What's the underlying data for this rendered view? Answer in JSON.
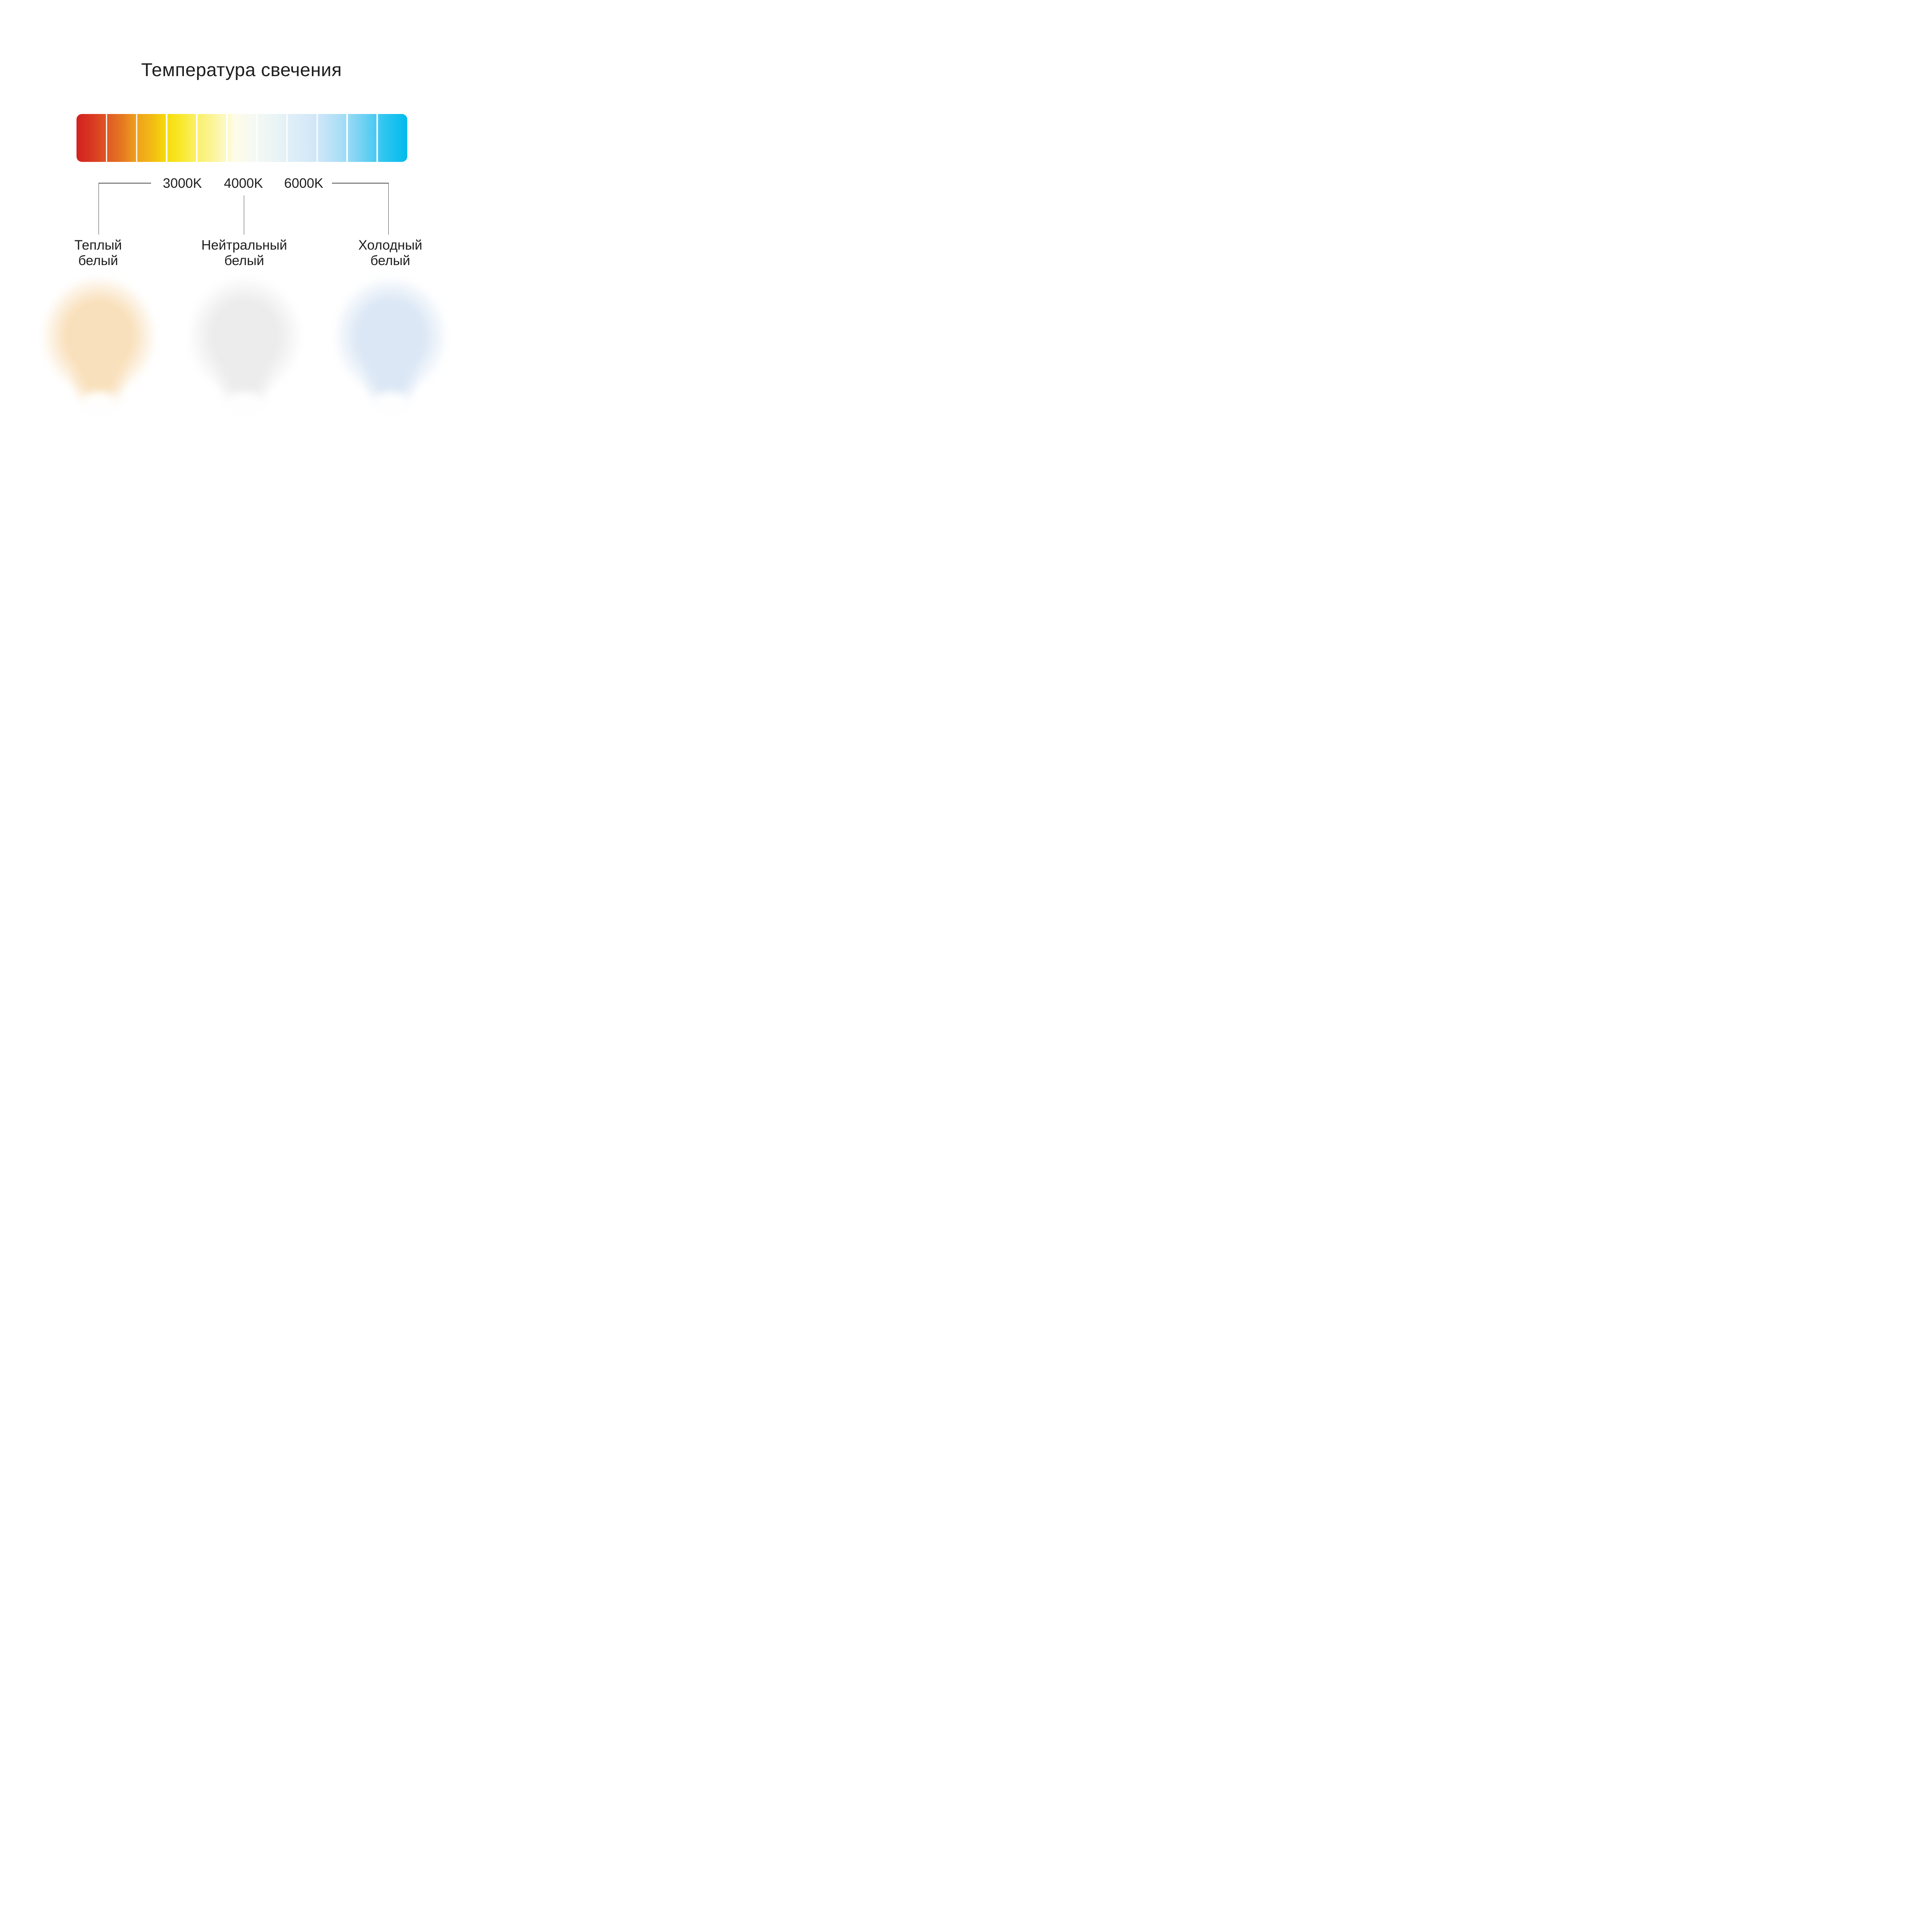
{
  "title": "Температура свечения",
  "colors": {
    "text": "#1E1E1E",
    "connector_line": "#4C4C4C",
    "background": "#FFFFFF"
  },
  "scale_bar": {
    "segments": 11,
    "gradient_stops": [
      {
        "pos": 0,
        "color": "#D2211F"
      },
      {
        "pos": 5,
        "color": "#D93A22"
      },
      {
        "pos": 9,
        "color": "#DE5823"
      },
      {
        "pos": 14,
        "color": "#E67A21"
      },
      {
        "pos": 18,
        "color": "#EF9F1C"
      },
      {
        "pos": 23,
        "color": "#F2BC14"
      },
      {
        "pos": 27,
        "color": "#F6DB0A"
      },
      {
        "pos": 32,
        "color": "#F9E930"
      },
      {
        "pos": 36,
        "color": "#FAEF66"
      },
      {
        "pos": 41,
        "color": "#FBF497"
      },
      {
        "pos": 48,
        "color": "#FEFCE8"
      },
      {
        "pos": 54,
        "color": "#F4F9F3"
      },
      {
        "pos": 60,
        "color": "#EAF4F5"
      },
      {
        "pos": 66,
        "color": "#DDEDF8"
      },
      {
        "pos": 73,
        "color": "#CFE6F8"
      },
      {
        "pos": 80,
        "color": "#A9DEF6"
      },
      {
        "pos": 86,
        "color": "#76D2F3"
      },
      {
        "pos": 93,
        "color": "#2FC5F0"
      },
      {
        "pos": 100,
        "color": "#00BBEC"
      }
    ]
  },
  "ticks": [
    {
      "label": "3000K"
    },
    {
      "label": "4000K"
    },
    {
      "label": "6000K"
    }
  ],
  "temperatures": [
    {
      "name_line1": "Теплый",
      "name_line2": "белый",
      "glow_body": "#F9E0BC",
      "glow_hotspot": "#FFFFFF"
    },
    {
      "name_line1": "Нейтральный",
      "name_line2": "белый",
      "glow_body": "#ECECED",
      "glow_hotspot": "#FFFFFF"
    },
    {
      "name_line1": "Холодный",
      "name_line2": "белый",
      "glow_body": "#DBE7F5",
      "glow_hotspot": "#FFFFFF"
    }
  ]
}
